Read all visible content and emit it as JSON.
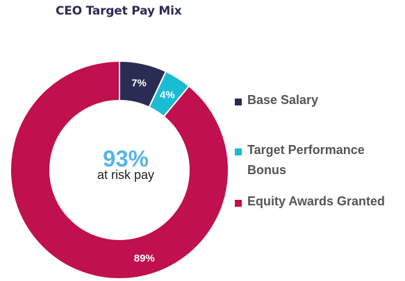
{
  "title": "CEO Target Pay Mix",
  "center": {
    "value": "93%",
    "label": "at risk pay",
    "color": "#5ab4e5"
  },
  "chart_data": {
    "type": "pie",
    "variant": "donut",
    "title": "CEO Target Pay Mix",
    "series": [
      {
        "name": "Base Salary",
        "value": 7,
        "label": "7%",
        "color": "#2b2c54"
      },
      {
        "name": "Target Performance Bonus",
        "value": 4,
        "label": "4%",
        "color": "#19bcd2"
      },
      {
        "name": "Equity Awards Granted",
        "value": 89,
        "label": "89%",
        "color": "#c0104d"
      }
    ],
    "legend_position": "right"
  },
  "legend": [
    {
      "label": "Base Salary",
      "color": "#2b2c54"
    },
    {
      "label": "Target Performance Bonus",
      "color": "#19bcd2"
    },
    {
      "label": "Equity Awards Granted",
      "color": "#c0104d"
    }
  ]
}
